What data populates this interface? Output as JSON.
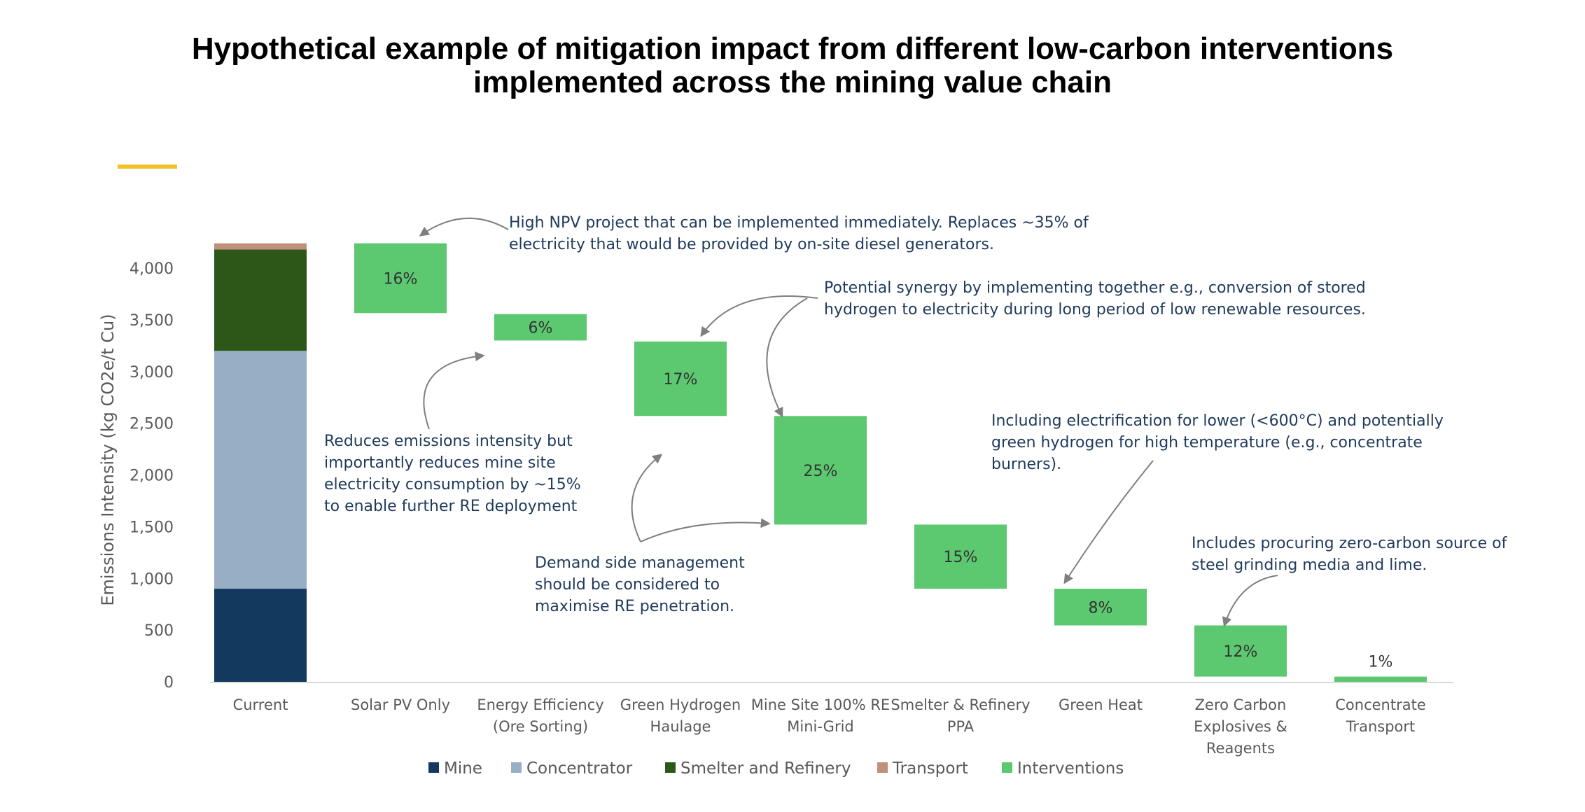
{
  "chart_data": {
    "type": "bar",
    "subtype": "waterfall",
    "title": [
      "Hypothetical example of mitigation impact from different low-carbon interventions",
      "implemented across the mining value chain"
    ],
    "ylabel": "Emissions Intensity (kg CO2e/t Cu)",
    "ylim": [
      0,
      4300
    ],
    "yticks": [
      0,
      500,
      1000,
      1500,
      2000,
      2500,
      3000,
      3500,
      4000
    ],
    "ytick_labels": [
      "0",
      "500",
      "1,000",
      "1,500",
      "2,000",
      "2,500",
      "3,000",
      "3,500",
      "4,000"
    ],
    "grid": false,
    "legend_position": "bottom",
    "categories": [
      [
        "Current"
      ],
      [
        "Solar PV Only"
      ],
      [
        "Energy Efficiency",
        "(Ore Sorting)"
      ],
      [
        "Green Hydrogen",
        "Haulage"
      ],
      [
        "Mine Site 100% RE",
        "Mini-Grid"
      ],
      [
        "Smelter & Refinery",
        "PPA"
      ],
      [
        "Green Heat"
      ],
      [
        "Zero Carbon",
        "Explosives &",
        "Reagents"
      ],
      [
        "Concentrate",
        "Transport"
      ]
    ],
    "current_stack": [
      {
        "name": "Mine",
        "value": 900,
        "color": "#133a5e"
      },
      {
        "name": "Concentrator",
        "value": 2300,
        "color": "#98aec4"
      },
      {
        "name": "Smelter and Refinery",
        "value": 980,
        "color": "#2c5719"
      },
      {
        "name": "Transport",
        "value": 60,
        "color": "#c0907a"
      }
    ],
    "interventions": {
      "name": "Interventions",
      "color": "#5cc870",
      "ranges": [
        [
          3565,
          4240
        ],
        [
          3300,
          3555
        ],
        [
          2570,
          3290
        ],
        [
          1520,
          2570
        ],
        [
          900,
          1520
        ],
        [
          545,
          900
        ],
        [
          50,
          545
        ],
        [
          0,
          50
        ]
      ],
      "labels": [
        "16%",
        "6%",
        "17%",
        "25%",
        "15%",
        "8%",
        "12%",
        "1%"
      ]
    },
    "annotations": [
      [
        "High NPV project that can be implemented immediately. Replaces ~35% of",
        "electricity that would be provided by on-site diesel generators."
      ],
      [
        "Potential synergy by implementing together e.g., conversion of stored",
        "hydrogen to electricity during long period of low renewable resources."
      ],
      [
        "Reduces emissions intensity but",
        "importantly reduces mine site",
        "electricity consumption by ~15%",
        "to enable further RE deployment"
      ],
      [
        "Demand side management",
        "should be considered to",
        "maximise RE penetration."
      ],
      [
        "Including electrification for lower (<600°C) and potentially",
        "green hydrogen for high temperature (e.g., concentrate",
        "burners)."
      ],
      [
        "Includes procuring zero-carbon source of",
        "steel grinding media and lime."
      ]
    ],
    "accent_color": "#f2c12e",
    "annotation_color": "#1f3a5c",
    "arrow_color": "#7f7f7f"
  }
}
